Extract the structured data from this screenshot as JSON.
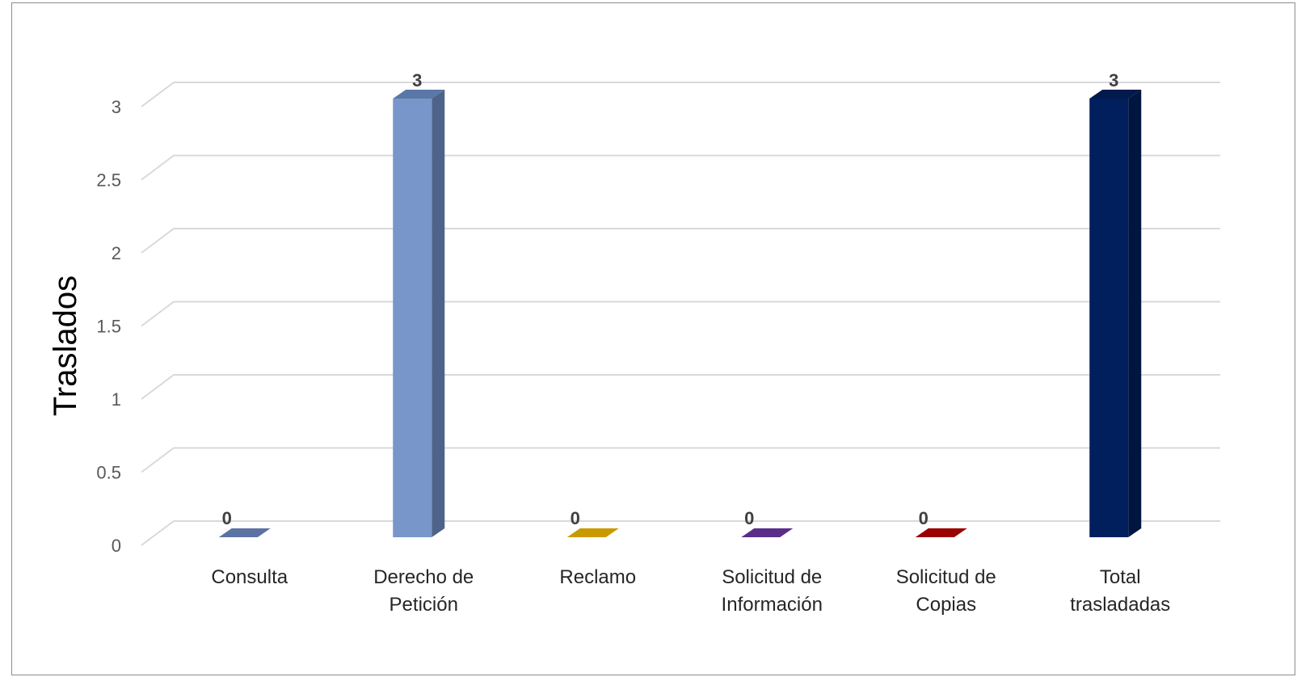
{
  "chart_data": {
    "type": "bar",
    "style": "3d-column",
    "title": "",
    "xlabel": "",
    "ylabel": "Traslados",
    "ylim": [
      0,
      3
    ],
    "yticks": [
      "0",
      "0.5",
      "1",
      "1.5",
      "2",
      "2.5",
      "3"
    ],
    "grid": true,
    "legend": "none",
    "categories": [
      [
        "Consulta"
      ],
      [
        "Derecho de",
        "Petición"
      ],
      [
        "Reclamo"
      ],
      [
        "Solicitud de",
        "Información"
      ],
      [
        "Solicitud de",
        "Copias"
      ],
      [
        "Total",
        "trasladadas"
      ]
    ],
    "values": [
      0,
      3,
      0,
      0,
      0,
      3
    ],
    "data_labels": [
      "0",
      "3",
      "0",
      "0",
      "0",
      "3"
    ],
    "colors": [
      "#5b72a3",
      "#7896c9",
      "#c99a00",
      "#5b2d8a",
      "#9b0000",
      "#001f5c"
    ],
    "side_colors": [
      "#4a5e88",
      "#4e6389",
      "#a57e00",
      "#45226a",
      "#7a0000",
      "#001540"
    ],
    "top_colors": [
      "#6d84b4",
      "#5b77a8",
      "#d9a900",
      "#6a3a9a",
      "#b00000",
      "#001a4d"
    ]
  }
}
